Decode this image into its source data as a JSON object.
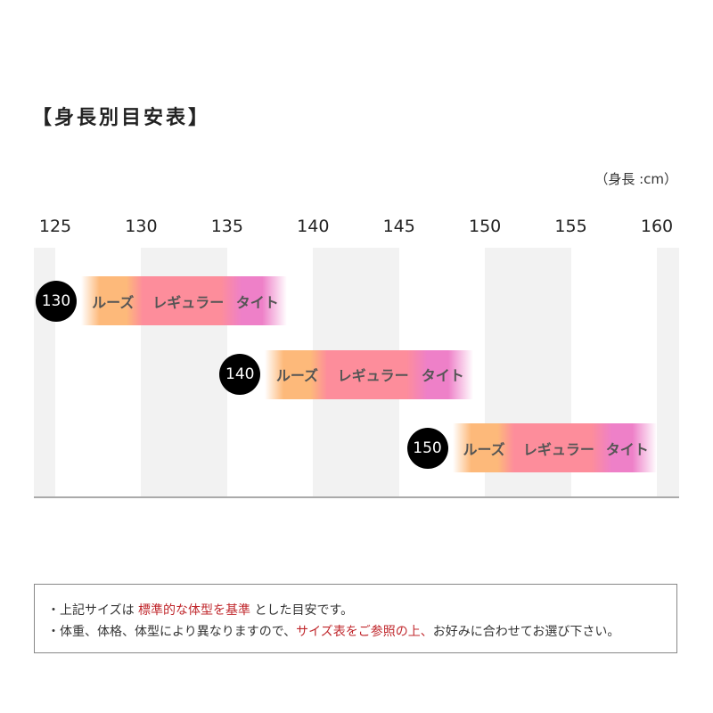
{
  "title": "【身長別目安表】",
  "unit": "（身長 :cm）",
  "chart_data": {
    "type": "bar",
    "orientation": "horizontal-range",
    "xlim": [
      125,
      160
    ],
    "ticks": [
      "125",
      "130",
      "135",
      "140",
      "145",
      "150",
      "155",
      "160"
    ],
    "segment_labels": [
      "ルーズ",
      "レギュラー",
      "タイト"
    ],
    "segment_colors": {
      "loose": "#fdb97a",
      "regular": "#fd8d9b",
      "tight": "#ee80c8"
    },
    "rows": [
      {
        "size": "130",
        "range": [
          126.5,
          138.5
        ]
      },
      {
        "size": "140",
        "range": [
          137.2,
          149.3
        ]
      },
      {
        "size": "150",
        "range": [
          148.1,
          160
        ]
      }
    ],
    "grid": "alternating-columns"
  },
  "notes": {
    "line1": {
      "a": "・上記サイズは ",
      "b": "標準的な体型を基準",
      "c": " とした目安です。"
    },
    "line2": {
      "a": "・体重、体格、体型により異なりますので、",
      "b": "サイズ表をご参照の上、",
      "c": "お好みに合わせてお選び下さい。"
    }
  }
}
